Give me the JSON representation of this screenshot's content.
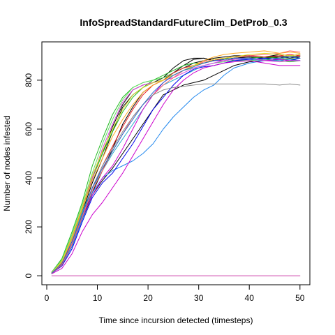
{
  "chart_data": {
    "type": "line",
    "title": "InfoSpreadStandardFutureClim_DetProb_0.3",
    "xlabel": "Time since incursion detected (timesteps)",
    "ylabel": "Number of nodes infested",
    "xlim": [
      -0.96,
      51.96
    ],
    "ylim": [
      -36.8,
      956.8
    ],
    "xticks": [
      0,
      10,
      20,
      30,
      40,
      50
    ],
    "yticks": [
      0,
      200,
      400,
      600,
      800
    ],
    "grid": false,
    "legend": "none",
    "series": [
      {
        "color": "#000000",
        "x": [
          1,
          3,
          5,
          7,
          9,
          11,
          13,
          15,
          17,
          19,
          21,
          23,
          25,
          27,
          29,
          31,
          33,
          35,
          37,
          40,
          43,
          46,
          48,
          50
        ],
        "values": [
          10,
          50,
          130,
          240,
          340,
          430,
          520,
          620,
          690,
          750,
          780,
          800,
          830,
          860,
          885,
          890,
          880,
          885,
          890,
          895,
          890,
          900,
          895,
          900
        ]
      },
      {
        "color": "#000000",
        "x": [
          1,
          3,
          5,
          7,
          9,
          11,
          13,
          15,
          17,
          19,
          21,
          23,
          25,
          27,
          29,
          31,
          33,
          35,
          37,
          40,
          43,
          46,
          48,
          50
        ],
        "values": [
          12,
          55,
          150,
          260,
          380,
          480,
          590,
          690,
          740,
          770,
          790,
          800,
          830,
          850,
          870,
          880,
          890,
          895,
          900,
          900,
          895,
          905,
          900,
          905
        ]
      },
      {
        "color": "#000000",
        "x": [
          1,
          3,
          5,
          7,
          9,
          11,
          13,
          15,
          17,
          19,
          21,
          23,
          25,
          27,
          29,
          31,
          33,
          35,
          37,
          40,
          43,
          46,
          48,
          50
        ],
        "values": [
          10,
          45,
          120,
          230,
          330,
          390,
          440,
          500,
          560,
          620,
          680,
          740,
          760,
          780,
          790,
          800,
          820,
          840,
          860,
          875,
          880,
          885,
          880,
          880
        ]
      },
      {
        "color": "#000000",
        "x": [
          1,
          3,
          5,
          7,
          9,
          11,
          13,
          15,
          17,
          19,
          21,
          23,
          25,
          27,
          29,
          31,
          33,
          35,
          37,
          40,
          43,
          46,
          48,
          50
        ],
        "values": [
          15,
          60,
          160,
          270,
          400,
          500,
          610,
          700,
          760,
          780,
          790,
          810,
          850,
          880,
          890,
          890,
          880,
          885,
          890,
          895,
          890,
          895,
          890,
          895
        ]
      },
      {
        "color": "#22bb22",
        "x": [
          1,
          3,
          5,
          7,
          9,
          11,
          13,
          15,
          17,
          19,
          21,
          23,
          25,
          27,
          29,
          31,
          33,
          35,
          37,
          40,
          43,
          46,
          48,
          50
        ],
        "values": [
          15,
          70,
          180,
          300,
          450,
          560,
          660,
          730,
          770,
          790,
          800,
          810,
          830,
          850,
          860,
          870,
          880,
          890,
          885,
          890,
          895,
          890,
          885,
          890
        ]
      },
      {
        "color": "#22bb22",
        "x": [
          1,
          3,
          5,
          7,
          9,
          11,
          13,
          15,
          17,
          19,
          21,
          23,
          25,
          27,
          29,
          31,
          33,
          35,
          37,
          40,
          43,
          46,
          48,
          50
        ],
        "values": [
          12,
          55,
          150,
          270,
          400,
          500,
          590,
          670,
          730,
          770,
          800,
          820,
          840,
          860,
          870,
          870,
          880,
          890,
          880,
          880,
          885,
          880,
          875,
          880
        ]
      },
      {
        "color": "#66dd66",
        "x": [
          1,
          3,
          5,
          7,
          9,
          11,
          13,
          15,
          17,
          19,
          21,
          23,
          25,
          27,
          29,
          31,
          33,
          35,
          37,
          40,
          43,
          46,
          48,
          50
        ],
        "values": [
          13,
          65,
          170,
          290,
          420,
          540,
          640,
          720,
          770,
          790,
          800,
          810,
          820,
          840,
          850,
          860,
          870,
          875,
          880,
          880,
          885,
          890,
          880,
          880
        ]
      },
      {
        "color": "#2288ee",
        "x": [
          1,
          3,
          5,
          7,
          9,
          11,
          13,
          15,
          17,
          19,
          21,
          23,
          25,
          27,
          29,
          31,
          33,
          35,
          37,
          40,
          43,
          46,
          48,
          50
        ],
        "values": [
          10,
          45,
          120,
          230,
          340,
          400,
          430,
          450,
          470,
          500,
          540,
          600,
          650,
          690,
          730,
          760,
          780,
          820,
          850,
          870,
          880,
          880,
          885,
          880
        ]
      },
      {
        "color": "#22aacc",
        "x": [
          1,
          3,
          5,
          7,
          9,
          11,
          13,
          15,
          17,
          19,
          21,
          23,
          25,
          27,
          29,
          31,
          33,
          35,
          37,
          40,
          43,
          46,
          48,
          50
        ],
        "values": [
          12,
          55,
          150,
          260,
          360,
          430,
          500,
          560,
          620,
          680,
          740,
          780,
          800,
          820,
          840,
          860,
          870,
          880,
          885,
          885,
          880,
          885,
          880,
          880
        ]
      },
      {
        "color": "#0000ee",
        "x": [
          1,
          3,
          5,
          7,
          9,
          11,
          13,
          15,
          17,
          19,
          21,
          23,
          25,
          27,
          29,
          31,
          33,
          35,
          37,
          40,
          43,
          46,
          48,
          50
        ],
        "values": [
          10,
          40,
          110,
          220,
          320,
          380,
          420,
          480,
          540,
          610,
          680,
          730,
          780,
          820,
          845,
          855,
          860,
          870,
          880,
          885,
          890,
          885,
          880,
          890
        ]
      },
      {
        "color": "#cc00cc",
        "x": [
          1,
          3,
          5,
          7,
          9,
          11,
          13,
          15,
          17,
          19,
          21,
          23,
          25,
          27,
          29,
          31,
          33,
          35,
          37,
          40,
          43,
          46,
          48,
          50
        ],
        "values": [
          8,
          30,
          90,
          180,
          250,
          300,
          360,
          420,
          490,
          560,
          630,
          700,
          760,
          800,
          830,
          850,
          860,
          870,
          875,
          880,
          870,
          860,
          860,
          860
        ]
      },
      {
        "color": "#cc00cc",
        "x": [
          1,
          3,
          5,
          7,
          9,
          11,
          13,
          15,
          17,
          19,
          21,
          23,
          25,
          27,
          29,
          31,
          33,
          35,
          37,
          40,
          43,
          46,
          48,
          50
        ],
        "values": [
          10,
          45,
          130,
          240,
          330,
          400,
          450,
          520,
          600,
          680,
          740,
          790,
          820,
          840,
          860,
          870,
          880,
          880,
          885,
          890,
          880,
          885,
          880,
          880
        ]
      },
      {
        "color": "#dd44dd",
        "x": [
          1,
          3,
          5,
          7,
          9,
          11,
          13,
          15,
          17,
          19,
          21,
          23,
          25,
          27,
          29,
          31,
          33,
          35,
          37,
          40,
          43,
          46,
          48,
          50
        ],
        "values": [
          12,
          55,
          160,
          280,
          400,
          520,
          620,
          710,
          760,
          780,
          790,
          800,
          810,
          830,
          850,
          860,
          870,
          880,
          885,
          890,
          880,
          875,
          880,
          880
        ]
      },
      {
        "color": "#cc44aa",
        "x": [
          1,
          3,
          5,
          7,
          9,
          11,
          13,
          15,
          17,
          19,
          21,
          23,
          25,
          27,
          29,
          31,
          33,
          35,
          37,
          40,
          43,
          46,
          48,
          50
        ],
        "values": [
          0,
          0,
          0,
          0,
          0,
          0,
          0,
          0,
          0,
          0,
          0,
          0,
          0,
          0,
          0,
          0,
          0,
          0,
          0,
          0,
          0,
          0,
          0,
          0
        ]
      },
      {
        "color": "#ff6666",
        "x": [
          1,
          3,
          5,
          7,
          9,
          11,
          13,
          15,
          17,
          19,
          21,
          23,
          25,
          27,
          29,
          31,
          33,
          35,
          37,
          40,
          43,
          46,
          48,
          50
        ],
        "values": [
          10,
          45,
          130,
          240,
          350,
          430,
          510,
          580,
          650,
          700,
          740,
          780,
          810,
          840,
          860,
          875,
          885,
          890,
          895,
          900,
          905,
          910,
          920,
          915
        ]
      },
      {
        "color": "#ee2222",
        "x": [
          1,
          3,
          5,
          7,
          9,
          11,
          13,
          15,
          17,
          19,
          21,
          23,
          25,
          27,
          29,
          31,
          33,
          35,
          37,
          40,
          43,
          46,
          48,
          50
        ],
        "values": [
          12,
          50,
          140,
          250,
          360,
          450,
          530,
          610,
          680,
          740,
          780,
          800,
          830,
          850,
          860,
          870,
          880,
          890,
          895,
          900,
          895,
          900,
          905,
          900
        ]
      },
      {
        "color": "#ffaa22",
        "x": [
          1,
          3,
          5,
          7,
          9,
          11,
          13,
          15,
          17,
          19,
          21,
          23,
          25,
          27,
          29,
          31,
          33,
          35,
          37,
          40,
          43,
          46,
          48,
          50
        ],
        "values": [
          13,
          55,
          150,
          270,
          390,
          480,
          570,
          640,
          700,
          750,
          780,
          800,
          820,
          840,
          860,
          880,
          895,
          905,
          910,
          915,
          920,
          910,
          915,
          910
        ]
      },
      {
        "color": "#dddd22",
        "x": [
          1,
          3,
          5,
          7,
          9,
          11,
          13,
          15,
          17,
          19,
          21,
          23,
          25,
          27,
          29,
          31,
          33,
          35,
          37,
          40,
          43,
          46,
          48,
          50
        ],
        "values": [
          12,
          60,
          160,
          280,
          410,
          510,
          600,
          680,
          740,
          770,
          790,
          800,
          820,
          840,
          860,
          870,
          885,
          890,
          895,
          905,
          910,
          905,
          900,
          905
        ]
      },
      {
        "color": "#888888",
        "x": [
          1,
          3,
          5,
          7,
          9,
          11,
          13,
          15,
          17,
          19,
          21,
          23,
          25,
          27,
          29,
          31,
          33,
          35,
          37,
          40,
          43,
          46,
          48,
          50
        ],
        "values": [
          10,
          50,
          140,
          250,
          360,
          450,
          520,
          590,
          650,
          700,
          740,
          760,
          770,
          775,
          780,
          785,
          785,
          785,
          785,
          785,
          785,
          780,
          785,
          780
        ]
      },
      {
        "color": "#2266cc",
        "x": [
          1,
          3,
          5,
          7,
          9,
          11,
          13,
          15,
          17,
          19,
          21,
          23,
          25,
          27,
          29,
          31,
          33,
          35,
          37,
          40,
          43,
          46,
          48,
          50
        ],
        "values": [
          11,
          50,
          140,
          250,
          360,
          440,
          510,
          580,
          640,
          700,
          750,
          790,
          820,
          840,
          855,
          870,
          880,
          885,
          890,
          890,
          885,
          890,
          895,
          890
        ]
      }
    ]
  }
}
